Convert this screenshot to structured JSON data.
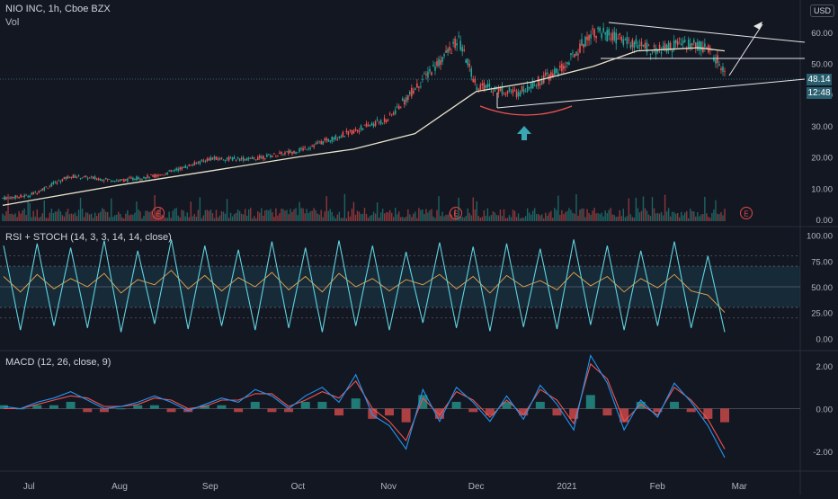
{
  "header": {
    "symbol_line": "NIO INC, 1h, Cboe BZX",
    "volume_label": "Vol",
    "currency": "USD"
  },
  "price_tags": {
    "last_price": "48.14",
    "countdown": "12:48"
  },
  "colors": {
    "background": "#131722",
    "up": "#26a69a",
    "down": "#ef5350",
    "ma_line": "#e8e4c9",
    "trendline": "#e6e6e6",
    "arrow": "#3aa6b3",
    "rsi": "#e8a54a",
    "stoch_k": "#5ed3e0",
    "macd": "#2196f3",
    "signal": "#ef5350",
    "earnings": "#e24a4a"
  },
  "chart_data": [
    {
      "type": "candlestick",
      "title": "NIO INC, 1h, Cboe BZX",
      "x_ticks": [
        "Jul",
        "Aug",
        "Sep",
        "Oct",
        "Nov",
        "Dec",
        "2021",
        "Feb",
        "Mar"
      ],
      "y_ticks": [
        "0.00",
        "10.00",
        "20.00",
        "30.00",
        "40.00",
        "50.00",
        "60.00"
      ],
      "ylim": [
        0,
        68
      ],
      "series": [
        {
          "name": "Price",
          "x": [
            "2020-06-22",
            "2020-07-01",
            "2020-07-15",
            "2020-08-01",
            "2020-08-15",
            "2020-09-01",
            "2020-09-15",
            "2020-10-01",
            "2020-10-15",
            "2020-11-01",
            "2020-11-15",
            "2020-11-25",
            "2020-12-01",
            "2020-12-15",
            "2020-12-31",
            "2021-01-10",
            "2021-01-20",
            "2021-02-01",
            "2021-02-10",
            "2021-02-18",
            "2021-02-24"
          ],
          "values": [
            6.8,
            7.6,
            13.9,
            12.4,
            14.2,
            19.5,
            19.3,
            22.0,
            26.6,
            32.3,
            47.2,
            57.3,
            43.0,
            40.5,
            48.7,
            60.5,
            57.5,
            54.0,
            56.5,
            55.0,
            48.14
          ]
        },
        {
          "name": "Moving average",
          "x": [
            "2020-06-22",
            "2020-08-01",
            "2020-09-01",
            "2020-10-01",
            "2020-10-20",
            "2020-11-10",
            "2020-12-01",
            "2020-12-20",
            "2021-01-10",
            "2021-01-25",
            "2021-02-15",
            "2021-02-24"
          ],
          "values": [
            4.5,
            11.0,
            15.5,
            20.0,
            22.5,
            27.5,
            41.0,
            44.0,
            49.0,
            54.0,
            55.0,
            54.0
          ]
        }
      ],
      "volume_labels": [
        "Vol"
      ],
      "earnings_markers": [
        "E",
        "E",
        "E"
      ]
    },
    {
      "type": "line",
      "title": "RSI + STOCH (14, 3, 3, 14, 14, close)",
      "y_ticks": [
        "0.00",
        "25.00",
        "50.00",
        "75.00",
        "100.00"
      ],
      "ylim": [
        0,
        100
      ],
      "reference_levels": [
        20,
        30,
        50,
        70,
        80
      ],
      "series": [
        {
          "name": "STOCH",
          "values": [
            90,
            8,
            92,
            12,
            88,
            10,
            95,
            6,
            85,
            14,
            96,
            9,
            90,
            12,
            86,
            8,
            94,
            10,
            88,
            6,
            95,
            12,
            90,
            8,
            84,
            15,
            93,
            10,
            89,
            7,
            92,
            11,
            87,
            9,
            96,
            13,
            90,
            8,
            85,
            12,
            94,
            10,
            80,
            6
          ]
        },
        {
          "name": "RSI",
          "values": [
            60,
            45,
            62,
            48,
            58,
            50,
            63,
            44,
            57,
            52,
            66,
            48,
            61,
            46,
            59,
            50,
            64,
            47,
            60,
            45,
            63,
            50,
            58,
            46,
            57,
            52,
            62,
            48,
            60,
            44,
            61,
            50,
            56,
            47,
            64,
            51,
            60,
            45,
            58,
            49,
            62,
            46,
            42,
            25
          ]
        }
      ]
    },
    {
      "type": "line",
      "title": "MACD (12, 26, close, 9)",
      "y_ticks": [
        "2.00",
        "0.00",
        "-2.00"
      ],
      "ylim": [
        -2.6,
        2.6
      ],
      "series": [
        {
          "name": "MACD",
          "values": [
            0.1,
            0.0,
            0.3,
            0.5,
            0.8,
            0.4,
            0.0,
            0.1,
            0.3,
            0.6,
            0.3,
            -0.1,
            0.2,
            0.5,
            0.3,
            0.9,
            0.6,
            0.0,
            0.6,
            1.0,
            0.3,
            1.6,
            -0.3,
            -0.8,
            -1.9,
            0.9,
            -0.6,
            1.0,
            0.3,
            -0.6,
            0.6,
            -0.5,
            1.1,
            0.2,
            -1.0,
            2.5,
            1.2,
            -1.0,
            0.4,
            -0.4,
            1.2,
            0.3,
            -0.8,
            -2.3
          ]
        },
        {
          "name": "Signal",
          "values": [
            0.0,
            0.0,
            0.2,
            0.4,
            0.6,
            0.5,
            0.1,
            0.1,
            0.2,
            0.5,
            0.4,
            0.0,
            0.1,
            0.4,
            0.4,
            0.7,
            0.7,
            0.1,
            0.4,
            0.8,
            0.5,
            1.3,
            0.0,
            -0.6,
            -1.5,
            0.5,
            -0.3,
            0.8,
            0.4,
            -0.4,
            0.4,
            -0.3,
            0.9,
            0.4,
            -0.7,
            2.1,
            1.4,
            -0.6,
            0.2,
            -0.3,
            1.0,
            0.4,
            -0.5,
            -1.9
          ]
        }
      ]
    }
  ]
}
